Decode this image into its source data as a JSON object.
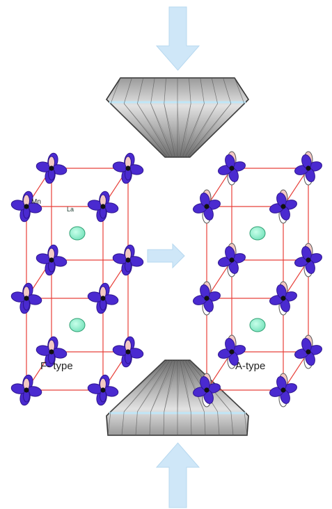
{
  "labels": {
    "mn": "Mn",
    "la": "La",
    "f_type": "F- type",
    "a_type": "A-type"
  },
  "colors": {
    "arrow": "#cfe7f8",
    "arrow_stroke": "#b7d8ef",
    "lattice_line": "#e8403a",
    "orbital_blue": "#4a2ad0",
    "orbital_blue_dark": "#2e1590",
    "orbital_pink": "#f3c9c4",
    "orbital_white": "#ffffff",
    "atom": "#111111",
    "la_fill": "#8ff0cf",
    "la_stroke": "#2f9f72",
    "diamond_light": "#f4f4f4",
    "diamond_dark": "#7a7a7a",
    "diamond_edge": "#333333",
    "diamond_band": "#bfe6f7"
  },
  "icons": {
    "pressure_arrow": "down-arrow-icon",
    "transition_arrow": "right-arrow-icon"
  }
}
